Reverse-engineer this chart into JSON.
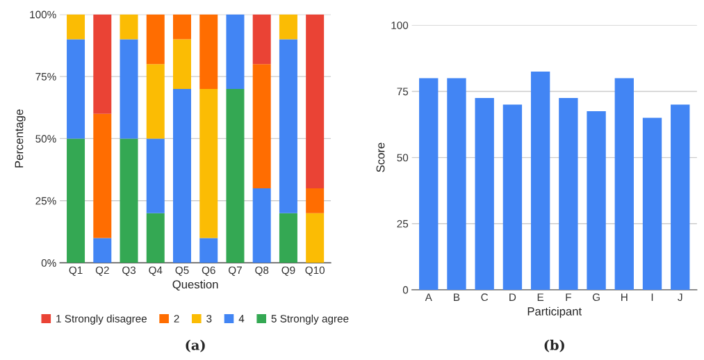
{
  "chart_data": [
    {
      "type": "bar",
      "stacked": true,
      "xlabel": "Question",
      "ylabel": "Percentage",
      "categories": [
        "Q1",
        "Q2",
        "Q3",
        "Q4",
        "Q5",
        "Q6",
        "Q7",
        "Q8",
        "Q9",
        "Q10"
      ],
      "series": [
        {
          "name": "5 Strongly agree",
          "color": "#34a853",
          "values": [
            50,
            0,
            50,
            20,
            0,
            0,
            70,
            0,
            20,
            0
          ]
        },
        {
          "name": "4",
          "color": "#4285f4",
          "values": [
            40,
            10,
            40,
            30,
            70,
            10,
            30,
            30,
            70,
            0
          ]
        },
        {
          "name": "3",
          "color": "#fbbc04",
          "values": [
            10,
            0,
            10,
            30,
            20,
            60,
            0,
            0,
            10,
            20
          ]
        },
        {
          "name": "2",
          "color": "#ff6d01",
          "values": [
            0,
            50,
            0,
            20,
            10,
            30,
            0,
            50,
            0,
            10
          ]
        },
        {
          "name": "1 Strongly disagree",
          "color": "#ea4335",
          "values": [
            0,
            40,
            0,
            0,
            0,
            0,
            0,
            20,
            0,
            70
          ]
        }
      ],
      "ylim": [
        0,
        100
      ],
      "yticks": [
        {
          "value": 0,
          "label": "0%"
        },
        {
          "value": 25,
          "label": "25%"
        },
        {
          "value": 50,
          "label": "50%"
        },
        {
          "value": 75,
          "label": "75%"
        },
        {
          "value": 100,
          "label": "100%"
        }
      ],
      "grid": "y",
      "legend": "bottom",
      "annotations": [
        "(a)"
      ]
    },
    {
      "type": "bar",
      "xlabel": "Participant",
      "ylabel": "Score",
      "categories": [
        "A",
        "B",
        "C",
        "D",
        "E",
        "F",
        "G",
        "H",
        "I",
        "J"
      ],
      "series": [
        {
          "color": "#4285f4",
          "values": [
            80,
            80,
            72.5,
            70,
            82.5,
            72.5,
            67.5,
            80,
            65,
            70
          ]
        }
      ],
      "ylim": [
        0,
        100
      ],
      "yticks": [
        0,
        25,
        50,
        75,
        100
      ],
      "grid": "y",
      "annotations": [
        "(b)"
      ]
    }
  ]
}
